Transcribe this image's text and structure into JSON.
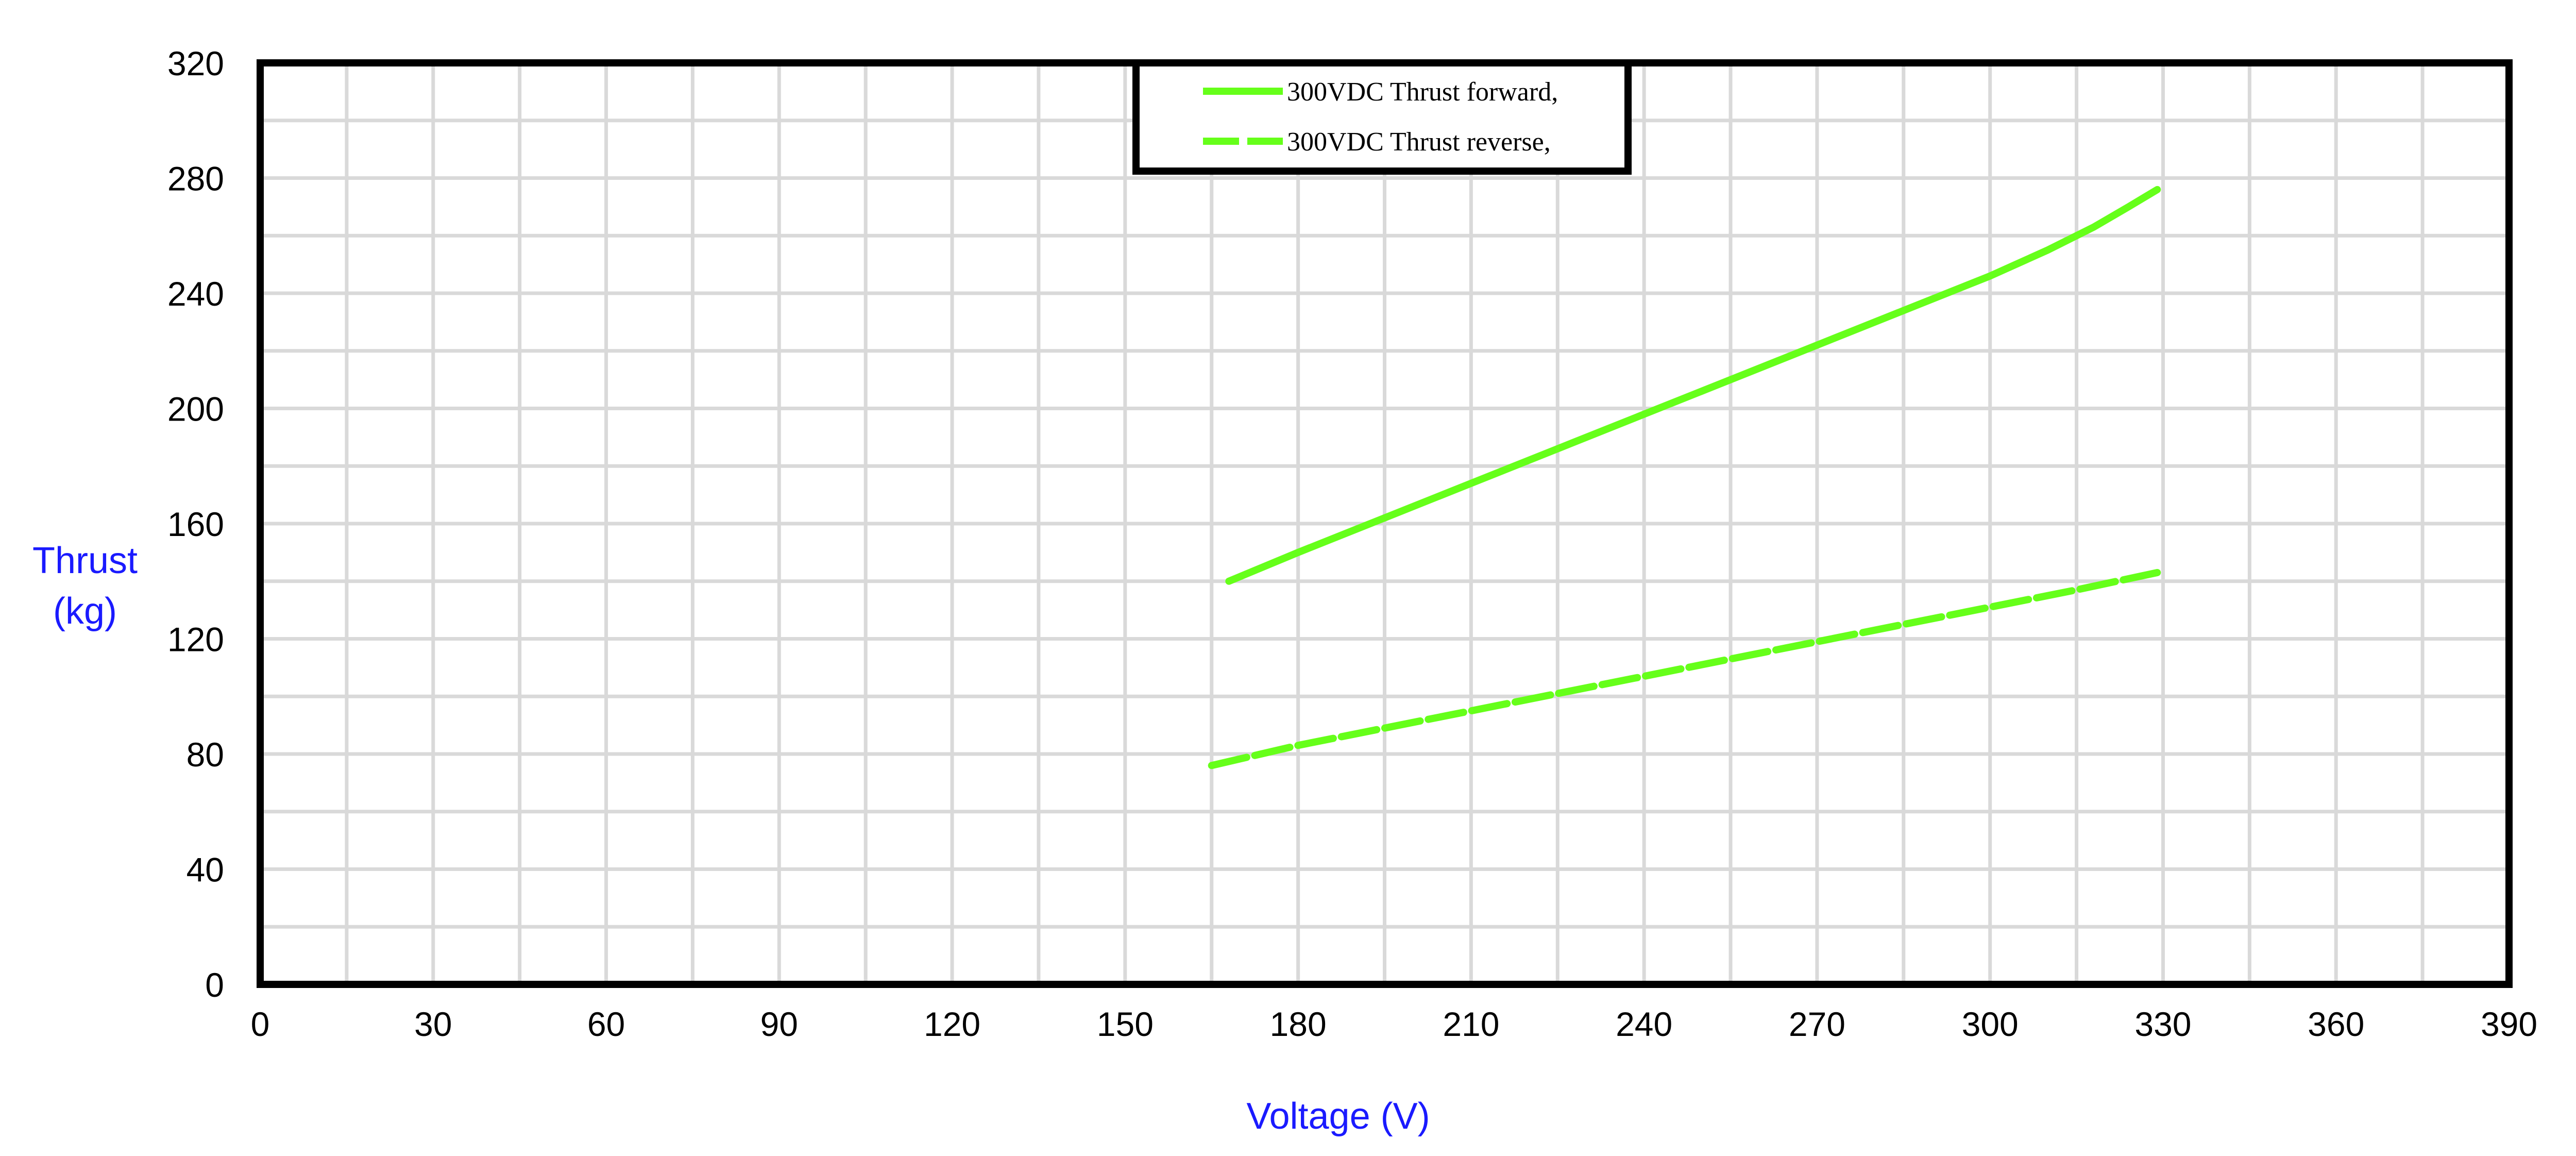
{
  "chart_data": {
    "type": "line",
    "xlabel": "Voltage (V)",
    "ylabel_lines": [
      "Thrust",
      "(kg)"
    ],
    "xlim": [
      0,
      390
    ],
    "ylim": [
      0,
      320
    ],
    "x_ticks": [
      0,
      30,
      60,
      90,
      120,
      150,
      180,
      210,
      240,
      270,
      300,
      330,
      360,
      390
    ],
    "y_ticks": [
      0,
      40,
      80,
      120,
      160,
      200,
      240,
      280,
      320
    ],
    "x_minor_step": 15,
    "y_minor_step": 20,
    "grid": true,
    "legend_position": "top-center",
    "series": [
      {
        "name": "300VDC  Thrust forward,",
        "color": "#66ff1a",
        "dashed": false,
        "x": [
          168,
          180,
          195,
          210,
          225,
          240,
          255,
          270,
          285,
          300,
          310,
          318,
          324,
          329
        ],
        "y": [
          140,
          150,
          162,
          174,
          186,
          198,
          210,
          222,
          234,
          246,
          255,
          263,
          270,
          276
        ]
      },
      {
        "name": "300VDC  Thrust reverse,",
        "color": "#66ff1a",
        "dashed": true,
        "x": [
          165,
          180,
          195,
          210,
          225,
          240,
          255,
          270,
          285,
          300,
          315,
          329
        ],
        "y": [
          76,
          83,
          89,
          95,
          101,
          107,
          113,
          119,
          125,
          131,
          137,
          143
        ]
      }
    ]
  }
}
